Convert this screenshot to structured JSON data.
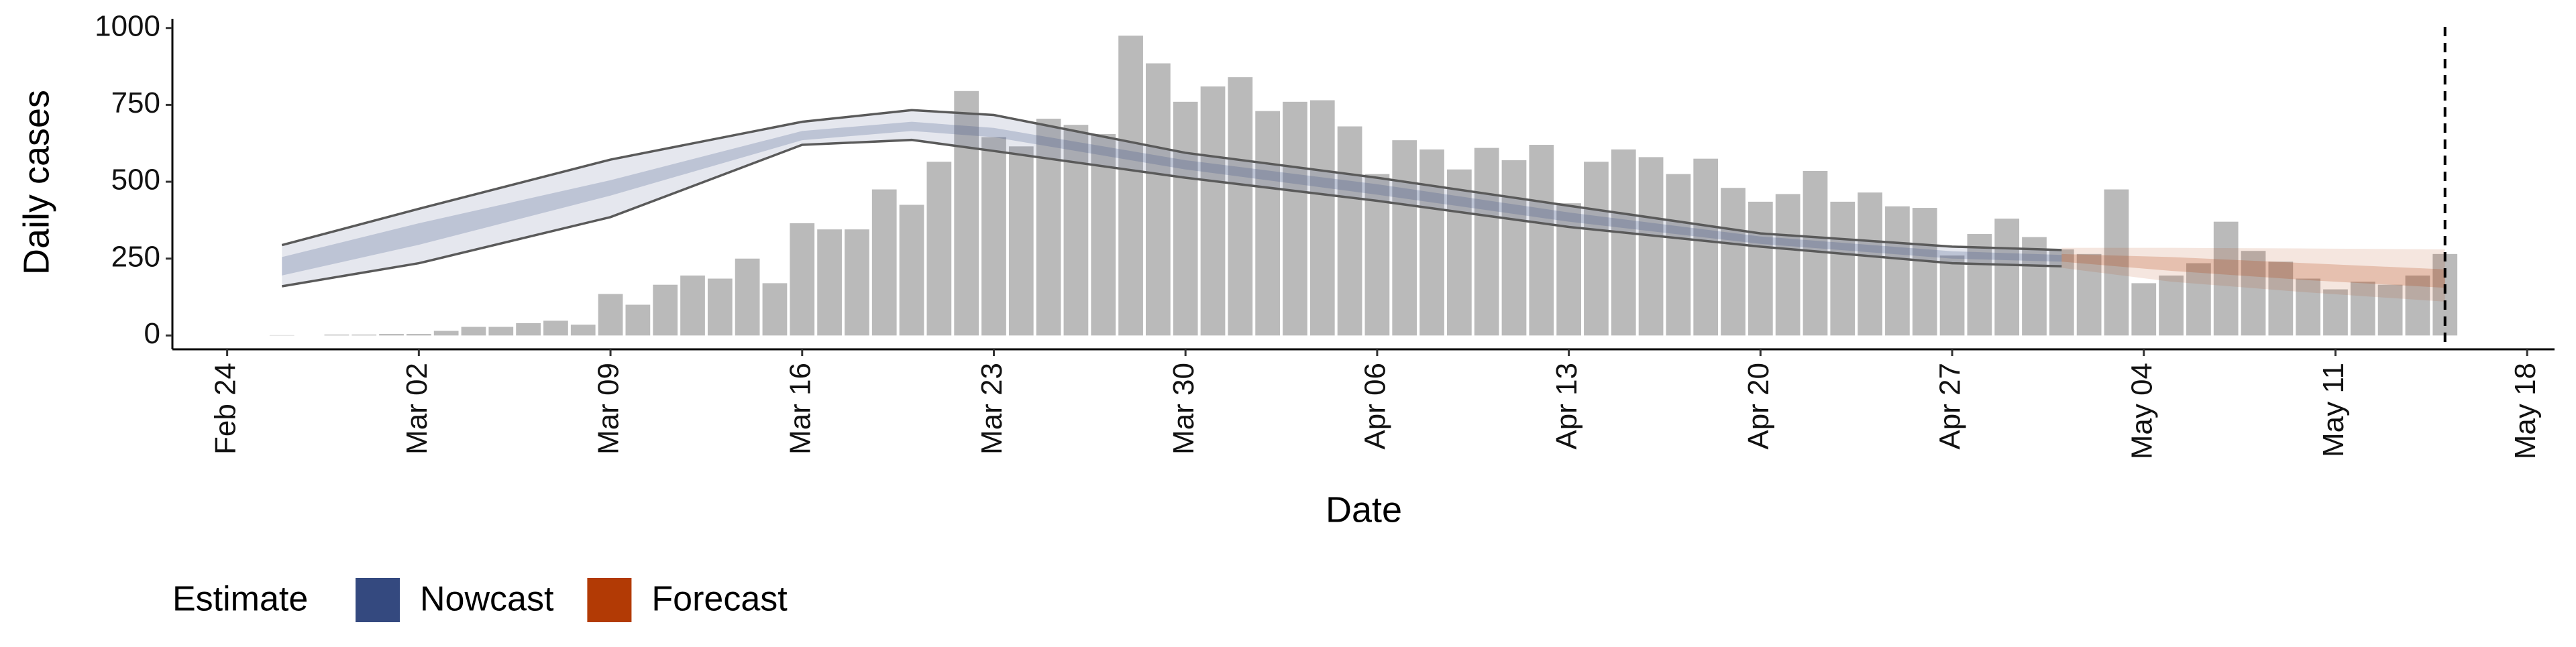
{
  "chart_data": {
    "type": "bar",
    "x_label": "Date",
    "y_label": "Daily cases",
    "xlim": [
      "Feb 22",
      "May 19"
    ],
    "xticks": [
      "Feb 24",
      "Mar 02",
      "Mar 09",
      "Mar 16",
      "Mar 23",
      "Mar 30",
      "Apr 06",
      "Apr 13",
      "Apr 20",
      "Apr 27",
      "May 04",
      "May 11",
      "May 18"
    ],
    "ylim": [
      -45,
      1030
    ],
    "yticks": [
      0,
      250,
      500,
      750,
      1000
    ],
    "bar_color": "#bababa",
    "vline": "May 15",
    "x": [
      "Feb 26",
      "Feb 27",
      "Feb 28",
      "Feb 29",
      "Mar 01",
      "Mar 02",
      "Mar 03",
      "Mar 04",
      "Mar 05",
      "Mar 06",
      "Mar 07",
      "Mar 08",
      "Mar 09",
      "Mar 10",
      "Mar 11",
      "Mar 12",
      "Mar 13",
      "Mar 14",
      "Mar 15",
      "Mar 16",
      "Mar 17",
      "Mar 18",
      "Mar 19",
      "Mar 20",
      "Mar 21",
      "Mar 22",
      "Mar 23",
      "Mar 24",
      "Mar 25",
      "Mar 26",
      "Mar 27",
      "Mar 28",
      "Mar 29",
      "Mar 30",
      "Mar 31",
      "Apr 01",
      "Apr 02",
      "Apr 03",
      "Apr 04",
      "Apr 05",
      "Apr 06",
      "Apr 07",
      "Apr 08",
      "Apr 09",
      "Apr 10",
      "Apr 11",
      "Apr 12",
      "Apr 13",
      "Apr 14",
      "Apr 15",
      "Apr 16",
      "Apr 17",
      "Apr 18",
      "Apr 19",
      "Apr 20",
      "Apr 21",
      "Apr 22",
      "Apr 23",
      "Apr 24",
      "Apr 25",
      "Apr 26",
      "Apr 27",
      "Apr 28",
      "Apr 29",
      "Apr 30",
      "May 01",
      "May 02",
      "May 03",
      "May 04",
      "May 05",
      "May 06",
      "May 07",
      "May 08",
      "May 09",
      "May 10",
      "May 11",
      "May 12",
      "May 13",
      "May 14",
      "May 15"
    ],
    "values": [
      1,
      0,
      3,
      3,
      5,
      5,
      15,
      28,
      28,
      40,
      48,
      35,
      135,
      100,
      165,
      195,
      185,
      250,
      170,
      365,
      345,
      345,
      475,
      425,
      565,
      795,
      645,
      615,
      705,
      685,
      655,
      975,
      885,
      760,
      810,
      840,
      730,
      760,
      765,
      680,
      525,
      635,
      605,
      540,
      610,
      570,
      620,
      430,
      565,
      605,
      580,
      525,
      575,
      480,
      435,
      460,
      535,
      435,
      465,
      420,
      415,
      260,
      330,
      380,
      320,
      280,
      265,
      475,
      170,
      195,
      235,
      370,
      275,
      240,
      185,
      150,
      175,
      165,
      195,
      265
    ],
    "legend_title": "Estimate",
    "series": [
      {
        "name": "Nowcast",
        "color": "#34497f",
        "x": [
          "Feb 26",
          "Mar 02",
          "Mar 09",
          "Mar 16",
          "Mar 20",
          "Mar 23",
          "Mar 30",
          "Apr 06",
          "Apr 13",
          "Apr 20",
          "Apr 27",
          "May 01"
        ],
        "lower90": [
          160,
          235,
          385,
          620,
          636,
          600,
          513,
          438,
          353,
          289,
          235,
          225
        ],
        "upper90": [
          294,
          412,
          572,
          695,
          733,
          717,
          594,
          513,
          422,
          332,
          289,
          278
        ],
        "lower50": [
          195,
          295,
          455,
          635,
          665,
          645,
          540,
          458,
          370,
          298,
          250,
          240
        ],
        "upper50": [
          255,
          365,
          505,
          665,
          695,
          675,
          570,
          492,
          400,
          322,
          274,
          262
        ]
      },
      {
        "name": "Forecast",
        "color": "#b23a05",
        "x": [
          "May 01",
          "May 05",
          "May 10",
          "May 15"
        ],
        "lower90": [
          220,
          175,
          140,
          110
        ],
        "upper90": [
          285,
          285,
          283,
          280
        ],
        "lower50": [
          240,
          210,
          180,
          155
        ],
        "upper50": [
          265,
          255,
          235,
          215
        ]
      }
    ]
  }
}
